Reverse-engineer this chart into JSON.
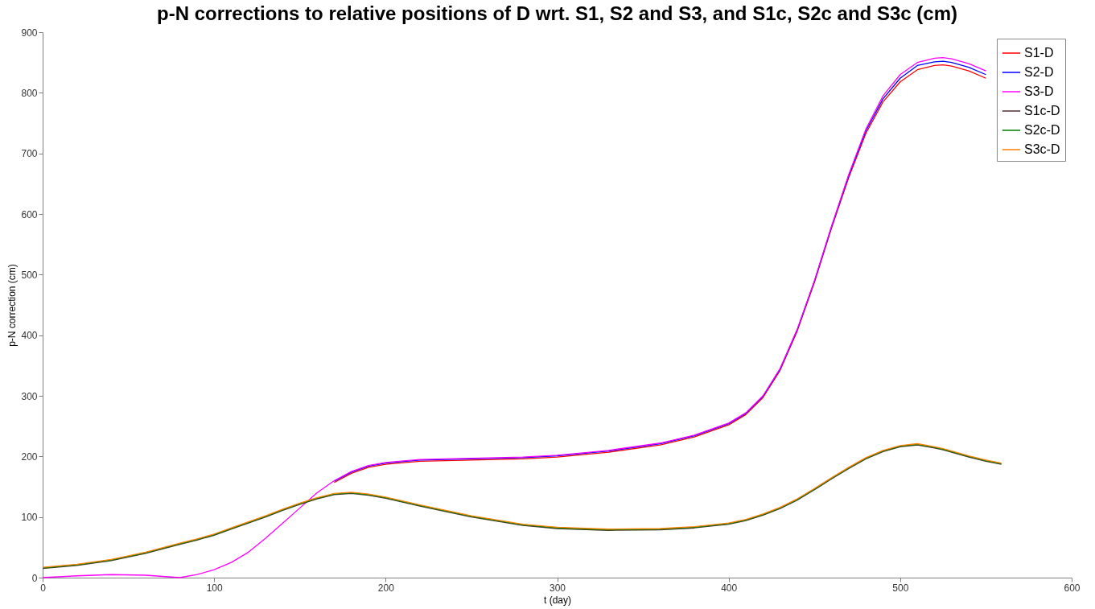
{
  "chart_data": {
    "type": "line",
    "title": "p-N corrections to relative positions of D wrt. S1, S2 and S3, and S1c, S2c and S3c (cm)",
    "xlabel": "t (day)",
    "ylabel": "p-N correction (cm)",
    "x": [
      0,
      20,
      40,
      60,
      80,
      90,
      100,
      110,
      120,
      130,
      140,
      150,
      160,
      170,
      180,
      190,
      200,
      220,
      250,
      280,
      300,
      330,
      360,
      380,
      400,
      410,
      420,
      430,
      440,
      450,
      460,
      470,
      480,
      490,
      500,
      510,
      520,
      525,
      530,
      540,
      550,
      559
    ],
    "series": [
      {
        "name": "S1-D",
        "color": "#ff0000",
        "values": [
          null,
          null,
          null,
          null,
          null,
          null,
          null,
          null,
          null,
          null,
          null,
          null,
          null,
          157,
          172,
          182,
          187,
          192,
          194,
          196,
          199,
          207,
          219,
          232,
          252,
          269,
          297,
          342,
          407,
          487,
          577,
          660,
          733,
          785,
          818,
          838,
          845,
          846,
          844,
          836,
          824,
          null
        ]
      },
      {
        "name": "S2-D",
        "color": "#0000ff",
        "values": [
          null,
          null,
          null,
          null,
          null,
          null,
          null,
          null,
          null,
          null,
          null,
          null,
          null,
          159,
          174,
          184,
          189,
          194,
          196,
          198,
          201,
          209,
          221,
          234,
          254,
          271,
          299,
          344,
          409,
          489,
          579,
          663,
          737,
          790,
          824,
          845,
          851,
          852,
          850,
          842,
          830,
          null
        ]
      },
      {
        "name": "S3-D",
        "color": "#ff00ff",
        "values": [
          0,
          3,
          5,
          4,
          0,
          5,
          13,
          25,
          42,
          65,
          90,
          115,
          140,
          160,
          175,
          185,
          190,
          195,
          197,
          199,
          202,
          210,
          222,
          235,
          255,
          272,
          300,
          345,
          410,
          490,
          580,
          665,
          740,
          795,
          830,
          850,
          857,
          858,
          856,
          848,
          836,
          null
        ]
      },
      {
        "name": "S1c-D",
        "color": "#4d2f2f",
        "values": [
          15,
          20,
          28,
          40,
          55,
          62,
          70,
          80,
          90,
          100,
          111,
          121,
          130,
          137,
          139,
          136,
          131,
          118,
          100,
          86,
          81,
          78,
          79,
          82,
          88,
          94,
          103,
          114,
          128,
          145,
          163,
          180,
          196,
          208,
          216,
          219,
          214,
          211,
          207,
          199,
          192,
          187
        ]
      },
      {
        "name": "S2c-D",
        "color": "#008000",
        "values": [
          16,
          21,
          29,
          41,
          56,
          63,
          71,
          81,
          91,
          101,
          112,
          122,
          131,
          138,
          140,
          137,
          132,
          119,
          101,
          87,
          82,
          79,
          80,
          83,
          89,
          95,
          104,
          115,
          129,
          146,
          164,
          181,
          197,
          209,
          217,
          220,
          215,
          212,
          208,
          200,
          193,
          188
        ]
      },
      {
        "name": "S3c-D",
        "color": "#ff8000",
        "values": [
          17,
          22,
          30,
          42,
          57,
          64,
          72,
          82,
          92,
          102,
          113,
          123,
          132,
          139,
          141,
          138,
          133,
          120,
          102,
          88,
          83,
          80,
          81,
          84,
          90,
          96,
          105,
          116,
          130,
          147,
          165,
          182,
          198,
          210,
          218,
          221,
          216,
          213,
          209,
          201,
          194,
          189
        ]
      }
    ],
    "xlim": [
      0,
      600
    ],
    "xticks": [
      0,
      100,
      200,
      300,
      400,
      500,
      600
    ],
    "ylim": [
      0,
      900
    ],
    "yticks": [
      0,
      100,
      200,
      300,
      400,
      500,
      600,
      700,
      800,
      900
    ],
    "legend": "top right",
    "grid": false,
    "marker": "none",
    "line_style": "solid"
  }
}
